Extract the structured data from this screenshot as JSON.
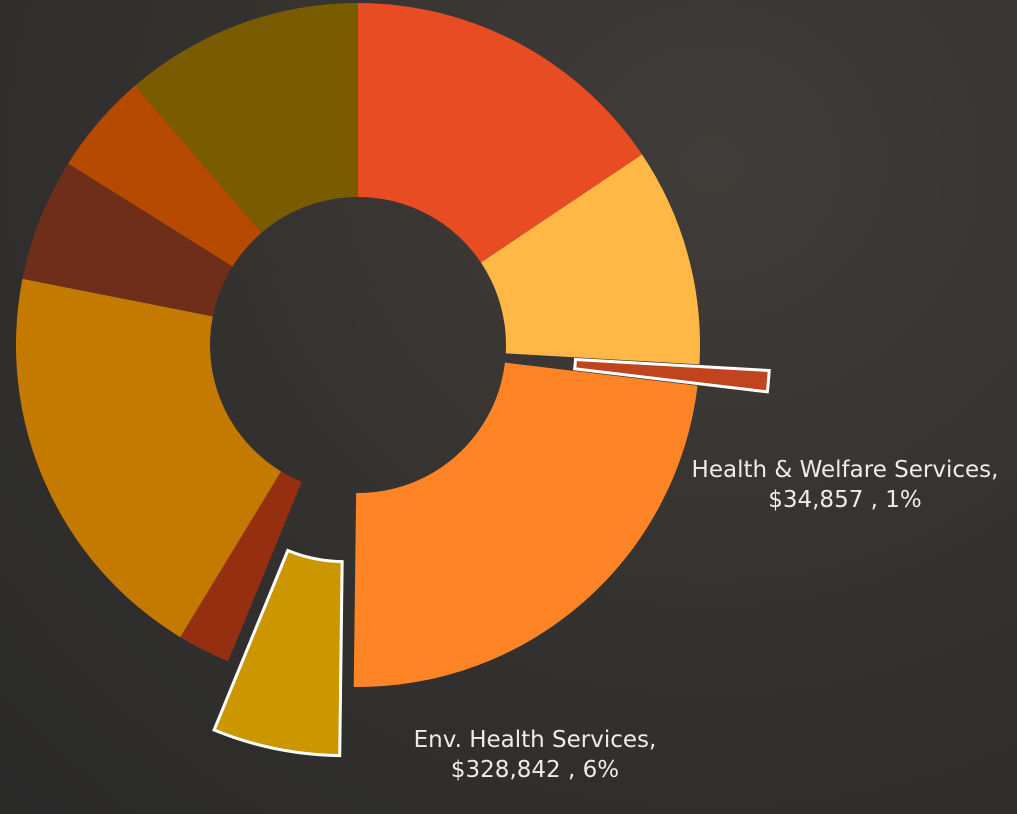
{
  "chart_data": {
    "type": "donut",
    "categories": [
      null,
      null,
      null,
      null,
      null,
      null,
      null,
      null,
      null,
      null
    ],
    "values": [
      15.6,
      10.3,
      1,
      23.3,
      6,
      2.5,
      19.4,
      5.8,
      4.8,
      11.3
    ],
    "data_labels": [
      null,
      null,
      "Health & Welfare Services,  $34,857 , 1%",
      null,
      "Env. Health Services, $328,842 , 6%",
      null,
      null,
      null,
      null,
      null
    ],
    "colors": [
      "#e84c22",
      "#ffb845",
      "#c0441e",
      "#ff8426",
      "#cc9600",
      "#962e10",
      "#c47a00",
      "#6e2e1a",
      "#b54a00",
      "#7a5c00"
    ],
    "exploded": [
      false,
      false,
      true,
      false,
      true,
      false,
      false,
      false,
      false,
      false
    ]
  }
}
